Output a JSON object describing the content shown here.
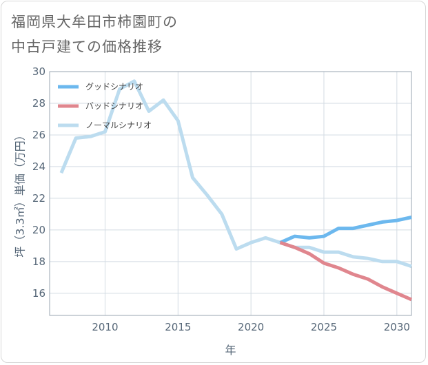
{
  "title_lines": [
    "福岡県大牟田市柿園町の",
    "中古戸建ての価格推移"
  ],
  "chart_data": {
    "type": "line",
    "title": "福岡県大牟田市柿園町の中古戸建ての価格推移",
    "xlabel": "年",
    "ylabel": "坪（3.3㎡）単価（万円）",
    "xlim": [
      2006.2,
      2031
    ],
    "ylim": [
      14.6,
      30
    ],
    "xticks": [
      2010,
      2015,
      2020,
      2025,
      2030
    ],
    "yticks": [
      16,
      18,
      20,
      22,
      24,
      26,
      28,
      30
    ],
    "grid": true,
    "legend_position": "top-left",
    "series": [
      {
        "name": "グッドシナリオ",
        "color": "#6cb8ee",
        "x": [
          2022,
          2023,
          2024,
          2025,
          2026,
          2027,
          2028,
          2029,
          2030,
          2031
        ],
        "values": [
          19.2,
          19.6,
          19.5,
          19.6,
          20.1,
          20.1,
          20.3,
          20.5,
          20.6,
          20.8
        ]
      },
      {
        "name": "バッドシナリオ",
        "color": "#e0868e",
        "x": [
          2022,
          2023,
          2024,
          2025,
          2026,
          2027,
          2028,
          2029,
          2030,
          2031
        ],
        "values": [
          19.2,
          18.9,
          18.5,
          17.9,
          17.6,
          17.2,
          16.9,
          16.4,
          16.0,
          15.6
        ]
      },
      {
        "name": "ノーマルシナリオ",
        "color": "#bcdcef",
        "x": [
          2007,
          2008,
          2009,
          2010,
          2011,
          2012,
          2013,
          2014,
          2015,
          2016,
          2017,
          2018,
          2019,
          2020,
          2021,
          2022,
          2023,
          2024,
          2025,
          2026,
          2027,
          2028,
          2029,
          2030,
          2031
        ],
        "values": [
          23.6,
          25.8,
          25.9,
          26.2,
          28.9,
          29.4,
          27.5,
          28.2,
          26.9,
          23.3,
          22.2,
          21.0,
          18.8,
          19.2,
          19.5,
          19.2,
          18.9,
          18.9,
          18.6,
          18.6,
          18.3,
          18.2,
          18.0,
          18.0,
          17.7
        ]
      }
    ]
  }
}
